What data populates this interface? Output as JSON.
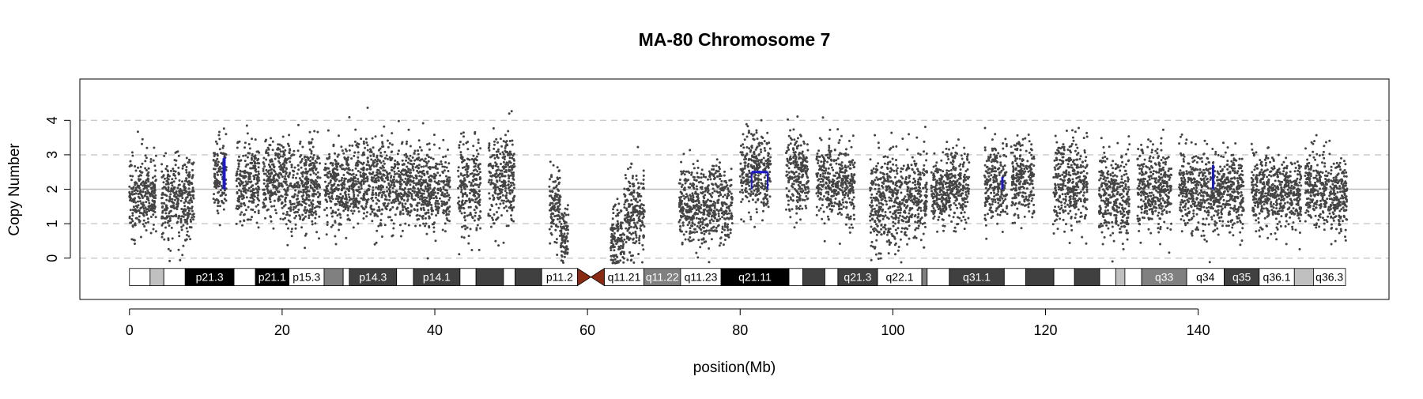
{
  "chart_data": {
    "type": "scatter",
    "title": "MA-80  Chromosome 7",
    "xlabel": "position(Mb)",
    "ylabel": "Copy Number",
    "xlim": [
      -6.5,
      165
    ],
    "ylim": [
      -1.2,
      5.2
    ],
    "x_ticks": [
      0,
      20,
      40,
      60,
      80,
      100,
      120,
      140
    ],
    "y_ticks": [
      0,
      1,
      2,
      3,
      4
    ],
    "dashed_gridlines_y": [
      0,
      1,
      3,
      4
    ],
    "reference_line_y": 2,
    "point_color": "#444444",
    "segment_color": "#1a1acc",
    "dense_clusters": [
      {
        "x_range": [
          0,
          3.5
        ],
        "mean": 1.85,
        "sd": 0.55
      },
      {
        "x_range": [
          4.2,
          8.5
        ],
        "mean": 1.7,
        "sd": 0.6
      },
      {
        "x_range": [
          11,
          12.7
        ],
        "mean": 2.4,
        "sd": 0.55
      },
      {
        "x_range": [
          14,
          17
        ],
        "mean": 2.25,
        "sd": 0.55
      },
      {
        "x_range": [
          17.5,
          20.5
        ],
        "mean": 2.3,
        "sd": 0.55
      },
      {
        "x_range": [
          20.5,
          25
        ],
        "mean": 2.05,
        "sd": 0.6
      },
      {
        "x_range": [
          25.5,
          29
        ],
        "mean": 2.1,
        "sd": 0.55
      },
      {
        "x_range": [
          29,
          34
        ],
        "mean": 2.2,
        "sd": 0.6
      },
      {
        "x_range": [
          34,
          38
        ],
        "mean": 2.15,
        "sd": 0.55
      },
      {
        "x_range": [
          38,
          42
        ],
        "mean": 1.95,
        "sd": 0.55
      },
      {
        "x_range": [
          43,
          46
        ],
        "mean": 2.05,
        "sd": 0.7
      },
      {
        "x_range": [
          47,
          50.5
        ],
        "mean": 2.3,
        "sd": 0.65
      },
      {
        "x_range": [
          55,
          56.5
        ],
        "mean": 1.6,
        "sd": 0.55
      },
      {
        "x_range": [
          56.5,
          57.5
        ],
        "mean": 0.6,
        "sd": 0.4
      },
      {
        "x_range": [
          63,
          64.8
        ],
        "mean": 0.5,
        "sd": 0.45
      },
      {
        "x_range": [
          64.8,
          67.5
        ],
        "mean": 1.3,
        "sd": 0.65
      },
      {
        "x_range": [
          72,
          79
        ],
        "mean": 1.55,
        "sd": 0.55
      },
      {
        "x_range": [
          80,
          84
        ],
        "mean": 2.5,
        "sd": 0.55
      },
      {
        "x_range": [
          86,
          89
        ],
        "mean": 2.4,
        "sd": 0.55
      },
      {
        "x_range": [
          90,
          95
        ],
        "mean": 2.2,
        "sd": 0.6
      },
      {
        "x_range": [
          97,
          102
        ],
        "mean": 1.7,
        "sd": 0.75
      },
      {
        "x_range": [
          102,
          104.5
        ],
        "mean": 1.85,
        "sd": 0.6
      },
      {
        "x_range": [
          105,
          107
        ],
        "mean": 1.9,
        "sd": 0.5
      },
      {
        "x_range": [
          107,
          110
        ],
        "mean": 2.1,
        "sd": 0.55
      },
      {
        "x_range": [
          112,
          115
        ],
        "mean": 2.1,
        "sd": 0.55
      },
      {
        "x_range": [
          115.5,
          118.5
        ],
        "mean": 2.3,
        "sd": 0.55
      },
      {
        "x_range": [
          121,
          125.5
        ],
        "mean": 2.2,
        "sd": 0.6
      },
      {
        "x_range": [
          127,
          131
        ],
        "mean": 1.85,
        "sd": 0.6
      },
      {
        "x_range": [
          132,
          136.5
        ],
        "mean": 2.0,
        "sd": 0.55
      },
      {
        "x_range": [
          137.5,
          143
        ],
        "mean": 1.9,
        "sd": 0.6
      },
      {
        "x_range": [
          143,
          146
        ],
        "mean": 2.05,
        "sd": 0.55
      },
      {
        "x_range": [
          147,
          149
        ],
        "mean": 1.95,
        "sd": 0.55
      },
      {
        "x_range": [
          149,
          153.5
        ],
        "mean": 1.9,
        "sd": 0.5
      },
      {
        "x_range": [
          154,
          156.5
        ],
        "mean": 2.0,
        "sd": 0.5
      },
      {
        "x_range": [
          156.5,
          159.5
        ],
        "mean": 1.85,
        "sd": 0.5
      }
    ],
    "segments": [
      {
        "x_start": 12.3,
        "x_end": 12.5,
        "value": 2.9
      },
      {
        "x_start": 81.5,
        "x_end": 83.6,
        "value": 2.5
      },
      {
        "x_start": 114.3,
        "x_end": 114.4,
        "value": 2.35
      },
      {
        "x_start": 141.9,
        "x_end": 142.0,
        "value": 2.7
      }
    ],
    "ideogram": {
      "y_center": -0.55,
      "band_height": 0.5,
      "start": 0,
      "end": 159.3,
      "centromere": [
        58.7,
        62.2
      ],
      "centromere_color": "#8b2a12",
      "bands": [
        {
          "start": 0,
          "end": 2.7,
          "fill": "#ffffff",
          "label": ""
        },
        {
          "start": 2.7,
          "end": 4.5,
          "fill": "#c0c0c0",
          "label": ""
        },
        {
          "start": 4.5,
          "end": 7.3,
          "fill": "#ffffff",
          "label": ""
        },
        {
          "start": 7.3,
          "end": 13.7,
          "fill": "#000000",
          "label": "p21.3"
        },
        {
          "start": 13.7,
          "end": 16.5,
          "fill": "#ffffff",
          "label": ""
        },
        {
          "start": 16.5,
          "end": 20.9,
          "fill": "#000000",
          "label": "p21.1"
        },
        {
          "start": 20.9,
          "end": 25.5,
          "fill": "#ffffff",
          "label": "p15.3"
        },
        {
          "start": 25.5,
          "end": 28.0,
          "fill": "#808080",
          "label": ""
        },
        {
          "start": 28.0,
          "end": 28.8,
          "fill": "#ffffff",
          "label": ""
        },
        {
          "start": 28.8,
          "end": 35.0,
          "fill": "#404040",
          "label": "p14.3"
        },
        {
          "start": 35.0,
          "end": 37.2,
          "fill": "#ffffff",
          "label": ""
        },
        {
          "start": 37.2,
          "end": 43.3,
          "fill": "#404040",
          "label": "p14.1"
        },
        {
          "start": 43.3,
          "end": 45.4,
          "fill": "#ffffff",
          "label": ""
        },
        {
          "start": 45.4,
          "end": 49.0,
          "fill": "#404040",
          "label": ""
        },
        {
          "start": 49.0,
          "end": 50.5,
          "fill": "#ffffff",
          "label": ""
        },
        {
          "start": 50.5,
          "end": 54.0,
          "fill": "#404040",
          "label": ""
        },
        {
          "start": 54.0,
          "end": 58.7,
          "fill": "#ffffff",
          "label": "p11.2"
        },
        {
          "start": 62.2,
          "end": 67.4,
          "fill": "#ffffff",
          "label": "q11.21"
        },
        {
          "start": 67.4,
          "end": 72.2,
          "fill": "#808080",
          "label": "q11.22"
        },
        {
          "start": 72.2,
          "end": 77.5,
          "fill": "#ffffff",
          "label": "q11.23"
        },
        {
          "start": 77.5,
          "end": 86.4,
          "fill": "#000000",
          "label": "q21.11"
        },
        {
          "start": 86.4,
          "end": 88.2,
          "fill": "#ffffff",
          "label": ""
        },
        {
          "start": 88.2,
          "end": 91.1,
          "fill": "#404040",
          "label": ""
        },
        {
          "start": 91.1,
          "end": 92.8,
          "fill": "#ffffff",
          "label": ""
        },
        {
          "start": 92.8,
          "end": 98.0,
          "fill": "#404040",
          "label": "q21.3"
        },
        {
          "start": 98.0,
          "end": 103.8,
          "fill": "#ffffff",
          "label": "q22.1"
        },
        {
          "start": 103.8,
          "end": 104.5,
          "fill": "#808080",
          "label": ""
        },
        {
          "start": 104.5,
          "end": 107.4,
          "fill": "#ffffff",
          "label": ""
        },
        {
          "start": 107.4,
          "end": 114.6,
          "fill": "#404040",
          "label": "q31.1"
        },
        {
          "start": 114.6,
          "end": 117.4,
          "fill": "#ffffff",
          "label": ""
        },
        {
          "start": 117.4,
          "end": 121.1,
          "fill": "#404040",
          "label": ""
        },
        {
          "start": 121.1,
          "end": 123.8,
          "fill": "#ffffff",
          "label": ""
        },
        {
          "start": 123.8,
          "end": 127.1,
          "fill": "#404040",
          "label": ""
        },
        {
          "start": 127.1,
          "end": 129.2,
          "fill": "#ffffff",
          "label": ""
        },
        {
          "start": 129.2,
          "end": 130.4,
          "fill": "#c0c0c0",
          "label": ""
        },
        {
          "start": 130.4,
          "end": 132.6,
          "fill": "#ffffff",
          "label": ""
        },
        {
          "start": 132.6,
          "end": 138.5,
          "fill": "#808080",
          "label": "q33"
        },
        {
          "start": 138.5,
          "end": 143.4,
          "fill": "#ffffff",
          "label": "q34"
        },
        {
          "start": 143.4,
          "end": 148.0,
          "fill": "#404040",
          "label": "q35"
        },
        {
          "start": 148.0,
          "end": 152.6,
          "fill": "#ffffff",
          "label": "q36.1"
        },
        {
          "start": 152.6,
          "end": 155.1,
          "fill": "#c0c0c0",
          "label": ""
        },
        {
          "start": 155.1,
          "end": 159.3,
          "fill": "#ffffff",
          "label": "q36.3"
        }
      ]
    }
  }
}
